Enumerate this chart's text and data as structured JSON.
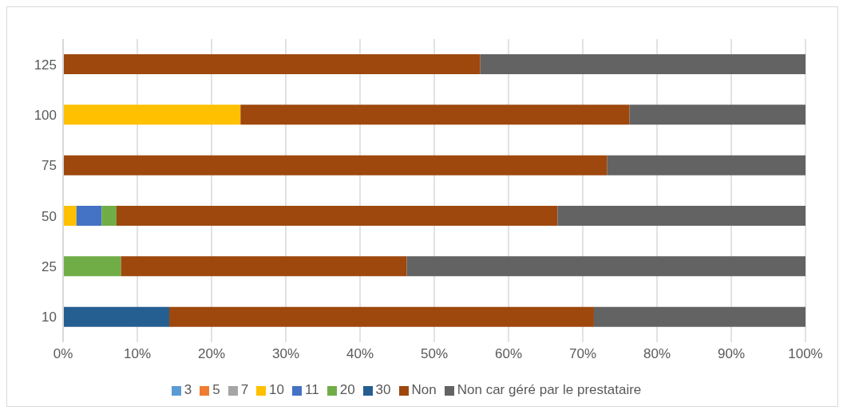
{
  "chart_data": {
    "type": "bar",
    "orientation": "horizontal",
    "stacked": true,
    "categories": [
      "125",
      "100",
      "75",
      "50",
      "25",
      "10"
    ],
    "series": [
      {
        "name": "3",
        "color": "#5b9bd5",
        "values": [
          null,
          null,
          null,
          null,
          null,
          null
        ]
      },
      {
        "name": "5",
        "color": "#ed7d31",
        "values": [
          null,
          null,
          null,
          null,
          null,
          null
        ]
      },
      {
        "name": "7",
        "color": "#a5a5a5",
        "values": [
          null,
          null,
          null,
          null,
          null,
          null
        ]
      },
      {
        "name": "10",
        "color": "#ffc000",
        "values": [
          null,
          23.9,
          null,
          1.8,
          null,
          null
        ]
      },
      {
        "name": "11",
        "color": "#4472c4",
        "values": [
          null,
          null,
          null,
          3.4,
          null,
          null
        ]
      },
      {
        "name": "20",
        "color": "#70ad47",
        "values": [
          null,
          null,
          null,
          2.0,
          7.8,
          null
        ]
      },
      {
        "name": "30",
        "color": "#255e91",
        "values": [
          null,
          null,
          null,
          null,
          null,
          14.3
        ]
      },
      {
        "name": "Non",
        "color": "#9e480e",
        "values": [
          56.2,
          52.4,
          73.3,
          59.4,
          38.5,
          57.2
        ]
      },
      {
        "name": "Non car géré par le prestataire",
        "color": "#636363",
        "values": [
          43.8,
          23.7,
          26.7,
          33.4,
          53.7,
          28.5
        ]
      }
    ],
    "xlim": [
      0,
      100
    ],
    "xticks": [
      {
        "value": 0,
        "label": "0%"
      },
      {
        "value": 10,
        "label": "10%"
      },
      {
        "value": 20,
        "label": "20%"
      },
      {
        "value": 30,
        "label": "30%"
      },
      {
        "value": 40,
        "label": "40%"
      },
      {
        "value": 50,
        "label": "50%"
      },
      {
        "value": 60,
        "label": "60%"
      },
      {
        "value": 70,
        "label": "70%"
      },
      {
        "value": 80,
        "label": "80%"
      },
      {
        "value": 90,
        "label": "90%"
      },
      {
        "value": 100,
        "label": "100%"
      }
    ],
    "grid": "x",
    "legend": "bottom"
  }
}
